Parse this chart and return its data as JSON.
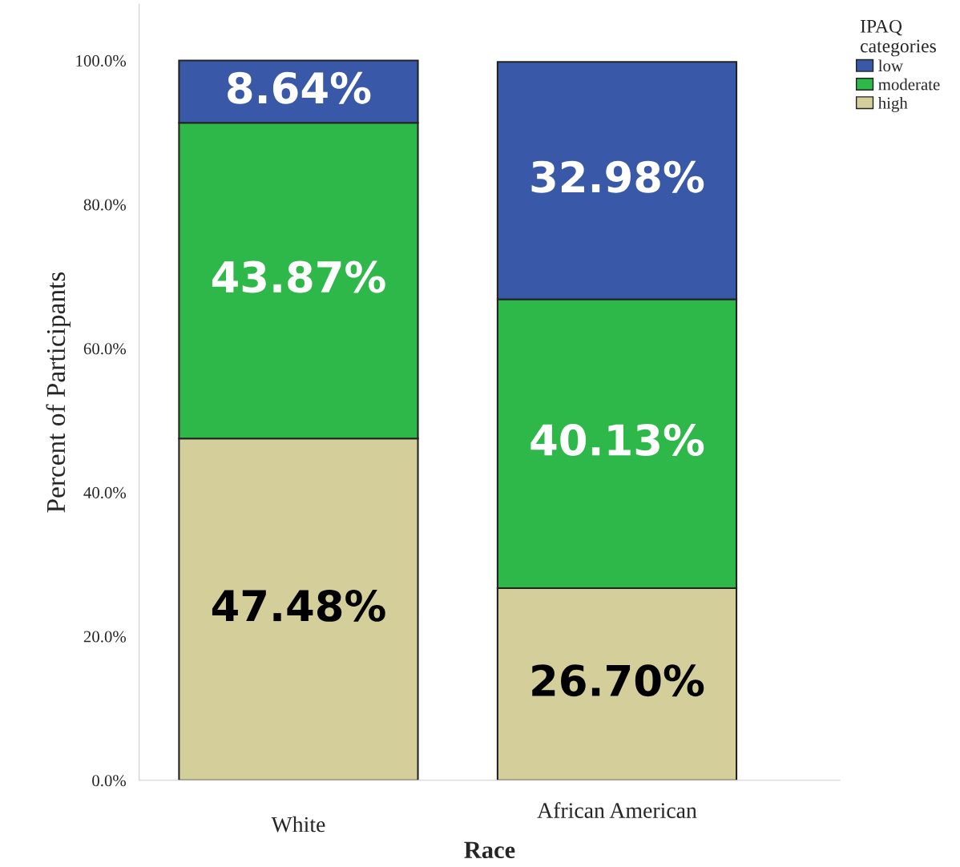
{
  "chart_data": {
    "type": "bar",
    "stacked": true,
    "xlabel": "Race",
    "ylabel": "Percent of Participants",
    "legend_title": "IPAQ\ncategories",
    "legend": "top right",
    "grid": false,
    "categories": [
      "White",
      "African American"
    ],
    "ylim": [
      0,
      107.8
    ],
    "yticks": [
      {
        "value": 0,
        "label": "0.0%"
      },
      {
        "value": 20,
        "label": "20.0%"
      },
      {
        "value": 40,
        "label": "40.0%"
      },
      {
        "value": 60,
        "label": "60.0%"
      },
      {
        "value": 80,
        "label": "80.0%"
      },
      {
        "value": 100,
        "label": "100.0%"
      }
    ],
    "series": [
      {
        "name": "high",
        "color": "#d4cf9a",
        "values": [
          47.48,
          26.7
        ],
        "value_labels": [
          "47.48%",
          "26.70%"
        ]
      },
      {
        "name": "moderate",
        "color": "#2fb84a",
        "values": [
          43.87,
          40.13
        ],
        "value_labels": [
          "43.87%",
          "40.13%"
        ]
      },
      {
        "name": "low",
        "color": "#3a58a8",
        "values": [
          8.64,
          32.98
        ],
        "value_labels": [
          "8.64%",
          "32.98%"
        ]
      }
    ]
  }
}
